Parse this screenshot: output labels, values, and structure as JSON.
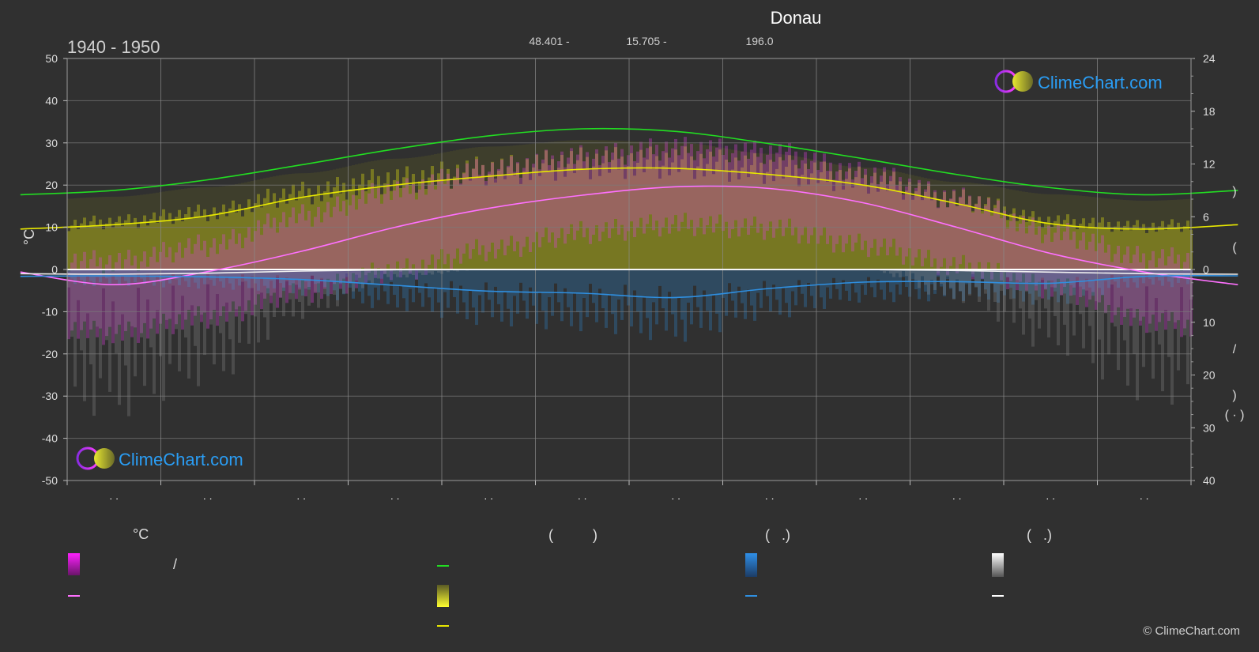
{
  "header": {
    "title": "Donau",
    "period": "1940 - 1950",
    "latitude": "48.401 -",
    "longitude": "15.705 -",
    "elevation": "196.0"
  },
  "logo_text": "ClimeChart.com",
  "copyright": "© ClimeChart.com",
  "legend": {
    "group_temperature": "°C",
    "group_sun": "(          )",
    "group_rain": "(   .)",
    "group_snow": "(   .)",
    "slash": "/"
  },
  "colors": {
    "background": "#303030",
    "temperature_range": "#e040e0",
    "temperature_mean": "#ff70ff",
    "daylight": "#22dd22",
    "sunshine": "#e8e800",
    "sunshine_fill": "#a6a61c",
    "precipitation": "#2f8fe0",
    "snow": "#f0f0f0",
    "logo_text": "#2a9df4"
  },
  "chart_data": {
    "type": "line",
    "x": [
      "",
      "",
      "",
      "",
      "",
      "",
      "",
      "",
      "",
      "",
      "",
      ""
    ],
    "x_tick_labels": [
      ". .",
      ". .",
      ". .",
      ". .",
      ". .",
      ". .",
      ". .",
      ". .",
      ". .",
      ". .",
      ". .",
      ". ."
    ],
    "left_axis": {
      "label": "°C",
      "ylim": [
        -50,
        50
      ],
      "ticks": [
        50,
        40,
        30,
        20,
        10,
        0,
        -10,
        -20,
        -30,
        -40,
        -50
      ]
    },
    "right_axis_upper": {
      "ylim": [
        0,
        24
      ],
      "ticks": [
        24,
        18,
        12,
        6,
        0
      ]
    },
    "right_axis_lower": {
      "ylim": [
        0,
        40
      ],
      "ticks": [
        0,
        10,
        20,
        30,
        40
      ]
    },
    "right_axis_label_glyphs": [
      ")",
      "(",
      "/",
      ")",
      "(  ·  )"
    ],
    "grid": true,
    "series": [
      {
        "key": "daylight",
        "axis": "right_upper",
        "values": [
          9.0,
          10.2,
          11.9,
          13.7,
          15.2,
          16.0,
          15.7,
          14.3,
          12.6,
          10.8,
          9.3,
          8.5
        ]
      },
      {
        "key": "sunshine",
        "axis": "right_upper",
        "values": [
          5.1,
          6.1,
          8.2,
          9.6,
          10.6,
          11.4,
          11.5,
          10.8,
          9.6,
          7.5,
          5.2,
          4.6
        ]
      },
      {
        "key": "temp_mean",
        "axis": "left",
        "values": [
          -3.6,
          -0.5,
          4.3,
          10.0,
          14.5,
          17.6,
          19.6,
          19.2,
          15.8,
          10.0,
          3.8,
          -0.6
        ]
      },
      {
        "key": "precipitation",
        "axis": "right_lower",
        "values": [
          1.2,
          1.4,
          1.9,
          3.0,
          4.1,
          4.5,
          5.3,
          3.6,
          2.4,
          2.3,
          2.6,
          1.3
        ]
      },
      {
        "key": "snow",
        "axis": "right_lower",
        "values": [
          0.9,
          0.7,
          0.3,
          0.05,
          0,
          0,
          0,
          0,
          0,
          0.2,
          0.5,
          0.8
        ]
      }
    ],
    "temp_range": {
      "max": [
        2,
        6,
        13,
        19,
        24,
        27,
        29,
        28,
        23,
        17,
        9,
        3
      ],
      "min": [
        -15,
        -11,
        -5,
        0,
        5,
        9,
        11,
        10,
        6,
        1,
        -4,
        -12
      ]
    }
  }
}
